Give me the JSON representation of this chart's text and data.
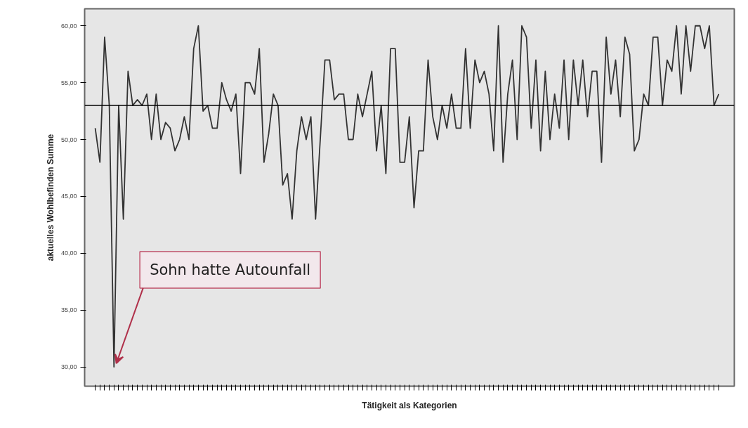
{
  "chart_data": {
    "type": "line",
    "xlabel": "Tätigkeit als Kategorien",
    "ylabel": "aktuelles Wohlbefinden Summe",
    "categories": [
      null,
      null,
      null,
      null,
      null,
      null,
      null,
      null,
      null,
      null,
      null,
      null,
      null,
      null,
      null,
      null,
      null,
      null,
      null,
      null,
      null,
      null,
      null,
      null,
      null,
      null,
      null,
      null,
      null,
      null,
      null,
      null,
      null,
      null,
      null,
      null,
      null,
      null,
      null,
      null,
      null,
      null,
      null,
      null,
      null,
      null,
      null,
      null,
      null,
      null,
      null,
      null,
      null,
      null,
      null,
      null,
      null,
      null,
      null,
      null,
      null,
      null,
      null,
      null,
      null,
      null,
      null,
      null,
      null,
      null,
      null,
      null,
      null,
      null,
      null,
      null,
      null,
      null,
      null,
      null,
      null,
      null,
      null,
      null,
      null,
      null,
      null,
      null,
      null,
      null,
      null,
      null,
      null,
      null,
      null,
      null,
      null,
      null,
      null,
      null,
      null,
      null,
      null,
      null,
      null,
      null,
      null,
      null,
      null,
      null,
      null,
      null,
      null,
      null,
      null,
      null,
      null,
      null,
      null,
      null,
      null,
      null,
      null,
      null,
      null,
      null,
      null,
      null,
      null,
      null,
      null,
      null,
      null,
      null
    ],
    "values": [
      51,
      48,
      59,
      53,
      30,
      53,
      43,
      56,
      53,
      53.5,
      53,
      54,
      50,
      54,
      50,
      51.5,
      51,
      49,
      50,
      52,
      50,
      58,
      60,
      52.5,
      53,
      51,
      51,
      55,
      53.5,
      52.5,
      54,
      47,
      55,
      55,
      54,
      58,
      48,
      50.5,
      54,
      53,
      46,
      47,
      43,
      49,
      52,
      50,
      52,
      43,
      50,
      57,
      57,
      53.5,
      54,
      54,
      50,
      50,
      54,
      52,
      54,
      56,
      49,
      53,
      47,
      58,
      58,
      48,
      48,
      52,
      44,
      49,
      49,
      57,
      52,
      50,
      53,
      51,
      54,
      51,
      51,
      58,
      51,
      57,
      55,
      56,
      54,
      49,
      60,
      48,
      54,
      57,
      50,
      60,
      59,
      51,
      57,
      49,
      56,
      50,
      54,
      51,
      57,
      50,
      57,
      53,
      57,
      52,
      56,
      56,
      48,
      59,
      54,
      57,
      52,
      59,
      57.5,
      49,
      50,
      54,
      53,
      59,
      59,
      53,
      57,
      56,
      60,
      54,
      60,
      56,
      60,
      60,
      58,
      60,
      53,
      54
    ],
    "ylim": [
      28.3,
      61.5
    ],
    "yticks": [
      {
        "value": 30,
        "label": "30,00"
      },
      {
        "value": 35,
        "label": "35,00"
      },
      {
        "value": 40,
        "label": "40,00"
      },
      {
        "value": 45,
        "label": "45,00"
      },
      {
        "value": 50,
        "label": "50,00"
      },
      {
        "value": 55,
        "label": "55,00"
      },
      {
        "value": 60,
        "label": "60,00"
      }
    ],
    "ref_lines": [
      {
        "axis": "y",
        "value": 53,
        "color": "#000000"
      }
    ],
    "annotations": [
      "Sohn hatte Autounfall"
    ],
    "color": "#333333",
    "grid": false
  }
}
